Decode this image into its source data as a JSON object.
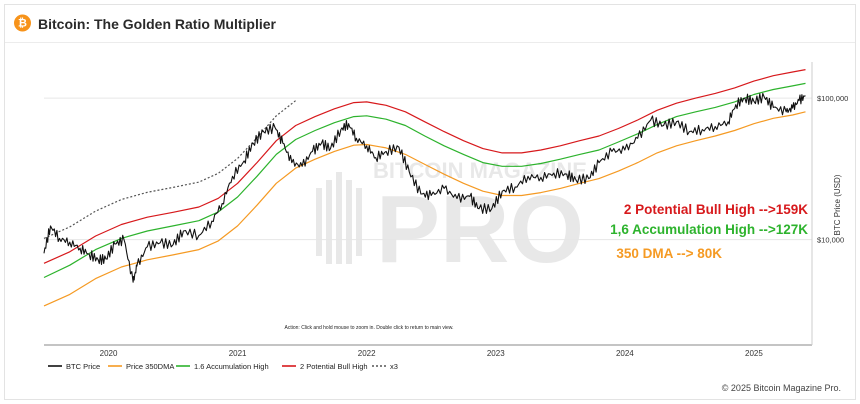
{
  "header": {
    "title": "Bitcoin: The Golden Ratio Multiplier",
    "logo_icon": "bitcoin-logo-icon",
    "logo_glyph": "₿"
  },
  "footer": {
    "copyright": "© 2025 Bitcoin Magazine Pro."
  },
  "watermark": {
    "top": "BITCOIN MAGAZINE",
    "main": "PRO"
  },
  "hint": "Action: Click and hold mouse to zoom in.  Double click to return to main view.",
  "colors": {
    "btc": "#111111",
    "dma350": "#f59a23",
    "accumulation": "#2db32d",
    "bull": "#d7191c",
    "x3": "#555555",
    "grid": "#e6e6e6"
  },
  "annotations": [
    {
      "text": "2 Potential Bull High -->159K",
      "color": "#d7191c"
    },
    {
      "text": "1,6 Accumulation High -->127K",
      "color": "#2db32d"
    },
    {
      "text": "350 DMA --> 80K",
      "color": "#f59a23"
    }
  ],
  "chart_data": {
    "type": "line",
    "title": "Bitcoin: The Golden Ratio Multiplier",
    "ylabel": "BTC Price (USD)",
    "yscale": "log",
    "ylim": [
      1800,
      180000
    ],
    "xlim": [
      2019.5,
      2025.45
    ],
    "x_ticks": [
      {
        "value": 2020,
        "label": "2020"
      },
      {
        "value": 2021,
        "label": "2021"
      },
      {
        "value": 2022,
        "label": "2022"
      },
      {
        "value": 2023,
        "label": "2023"
      },
      {
        "value": 2024,
        "label": "2024"
      },
      {
        "value": 2025,
        "label": "2025"
      }
    ],
    "y_ticks": [
      {
        "value": 10000,
        "label": "$10,000"
      },
      {
        "value": 100000,
        "label": "$100,000"
      }
    ],
    "grid": true,
    "legend_position": "bottom-left",
    "series": [
      {
        "name": "BTC Price",
        "key": "btc",
        "dash": "",
        "points": [
          [
            2019.5,
            8000
          ],
          [
            2019.55,
            12500
          ],
          [
            2019.62,
            10200
          ],
          [
            2019.7,
            9600
          ],
          [
            2019.78,
            8700
          ],
          [
            2019.85,
            7900
          ],
          [
            2019.92,
            7200
          ],
          [
            2019.98,
            7300
          ],
          [
            2020.05,
            9300
          ],
          [
            2020.12,
            10000
          ],
          [
            2020.19,
            5000
          ],
          [
            2020.22,
            6500
          ],
          [
            2020.3,
            8900
          ],
          [
            2020.4,
            9500
          ],
          [
            2020.5,
            9200
          ],
          [
            2020.58,
            11500
          ],
          [
            2020.7,
            10700
          ],
          [
            2020.8,
            13500
          ],
          [
            2020.88,
            18000
          ],
          [
            2020.96,
            28000
          ],
          [
            2021.05,
            36000
          ],
          [
            2021.12,
            48000
          ],
          [
            2021.2,
            58000
          ],
          [
            2021.29,
            62000
          ],
          [
            2021.35,
            48000
          ],
          [
            2021.42,
            35000
          ],
          [
            2021.5,
            33000
          ],
          [
            2021.58,
            42000
          ],
          [
            2021.65,
            48000
          ],
          [
            2021.72,
            44000
          ],
          [
            2021.8,
            60000
          ],
          [
            2021.86,
            66000
          ],
          [
            2021.92,
            52000
          ],
          [
            2022.0,
            46000
          ],
          [
            2022.07,
            38000
          ],
          [
            2022.15,
            42000
          ],
          [
            2022.25,
            45000
          ],
          [
            2022.33,
            30000
          ],
          [
            2022.42,
            21000
          ],
          [
            2022.5,
            20500
          ],
          [
            2022.6,
            23000
          ],
          [
            2022.7,
            19500
          ],
          [
            2022.8,
            20200
          ],
          [
            2022.87,
            16500
          ],
          [
            2022.97,
            16600
          ],
          [
            2023.05,
            22000
          ],
          [
            2023.15,
            23500
          ],
          [
            2023.25,
            28000
          ],
          [
            2023.35,
            27500
          ],
          [
            2023.45,
            29500
          ],
          [
            2023.55,
            29000
          ],
          [
            2023.62,
            26500
          ],
          [
            2023.72,
            27000
          ],
          [
            2023.8,
            35000
          ],
          [
            2023.9,
            42000
          ],
          [
            2024.0,
            43000
          ],
          [
            2024.1,
            52000
          ],
          [
            2024.2,
            70000
          ],
          [
            2024.3,
            64000
          ],
          [
            2024.4,
            68000
          ],
          [
            2024.5,
            58000
          ],
          [
            2024.6,
            60000
          ],
          [
            2024.7,
            63000
          ],
          [
            2024.8,
            68000
          ],
          [
            2024.86,
            90000
          ],
          [
            2024.93,
            100000
          ],
          [
            2025.0,
            95000
          ],
          [
            2025.08,
            102000
          ],
          [
            2025.15,
            86000
          ],
          [
            2025.25,
            80000
          ],
          [
            2025.3,
            85000
          ],
          [
            2025.35,
            96000
          ],
          [
            2025.4,
            104000
          ]
        ]
      },
      {
        "name": "Price 350DMA",
        "key": "dma350",
        "dash": "",
        "points": [
          [
            2019.5,
            3400
          ],
          [
            2019.7,
            4100
          ],
          [
            2019.9,
            5300
          ],
          [
            2020.1,
            6400
          ],
          [
            2020.3,
            7200
          ],
          [
            2020.5,
            7800
          ],
          [
            2020.7,
            8500
          ],
          [
            2020.85,
            9800
          ],
          [
            2021.0,
            12500
          ],
          [
            2021.15,
            17500
          ],
          [
            2021.3,
            25000
          ],
          [
            2021.45,
            32000
          ],
          [
            2021.6,
            37000
          ],
          [
            2021.75,
            42000
          ],
          [
            2021.9,
            46500
          ],
          [
            2022.0,
            47000
          ],
          [
            2022.15,
            44500
          ],
          [
            2022.3,
            40000
          ],
          [
            2022.45,
            34000
          ],
          [
            2022.6,
            29000
          ],
          [
            2022.75,
            25000
          ],
          [
            2022.9,
            22000
          ],
          [
            2023.05,
            20500
          ],
          [
            2023.2,
            20500
          ],
          [
            2023.35,
            21500
          ],
          [
            2023.5,
            23000
          ],
          [
            2023.65,
            25000
          ],
          [
            2023.8,
            27000
          ],
          [
            2023.95,
            30500
          ],
          [
            2024.1,
            35000
          ],
          [
            2024.25,
            41000
          ],
          [
            2024.4,
            46000
          ],
          [
            2024.55,
            50000
          ],
          [
            2024.7,
            54000
          ],
          [
            2024.85,
            59000
          ],
          [
            2025.0,
            66000
          ],
          [
            2025.15,
            72000
          ],
          [
            2025.3,
            76000
          ],
          [
            2025.4,
            80000
          ]
        ]
      },
      {
        "name": "1.6 Accumulation High",
        "key": "accumulation",
        "dash": "",
        "points": [
          [
            2019.5,
            5400
          ],
          [
            2019.7,
            6600
          ],
          [
            2019.9,
            8500
          ],
          [
            2020.1,
            10200
          ],
          [
            2020.3,
            11500
          ],
          [
            2020.5,
            12500
          ],
          [
            2020.7,
            13600
          ],
          [
            2020.85,
            15700
          ],
          [
            2021.0,
            20000
          ],
          [
            2021.15,
            28000
          ],
          [
            2021.3,
            40000
          ],
          [
            2021.45,
            51000
          ],
          [
            2021.6,
            59000
          ],
          [
            2021.75,
            67000
          ],
          [
            2021.9,
            74000
          ],
          [
            2022.0,
            75000
          ],
          [
            2022.15,
            71000
          ],
          [
            2022.3,
            64000
          ],
          [
            2022.45,
            54000
          ],
          [
            2022.6,
            46000
          ],
          [
            2022.75,
            40000
          ],
          [
            2022.9,
            35000
          ],
          [
            2023.05,
            33000
          ],
          [
            2023.2,
            33000
          ],
          [
            2023.35,
            34500
          ],
          [
            2023.5,
            37000
          ],
          [
            2023.65,
            40000
          ],
          [
            2023.8,
            43000
          ],
          [
            2023.95,
            49000
          ],
          [
            2024.1,
            56000
          ],
          [
            2024.25,
            65000
          ],
          [
            2024.4,
            74000
          ],
          [
            2024.55,
            80000
          ],
          [
            2024.7,
            86000
          ],
          [
            2024.85,
            94000
          ],
          [
            2025.0,
            106000
          ],
          [
            2025.15,
            115000
          ],
          [
            2025.3,
            122000
          ],
          [
            2025.4,
            127000
          ]
        ]
      },
      {
        "name": "2 Potential Bull High",
        "key": "bull",
        "dash": "",
        "points": [
          [
            2019.5,
            6800
          ],
          [
            2019.7,
            8200
          ],
          [
            2019.9,
            10600
          ],
          [
            2020.1,
            12800
          ],
          [
            2020.3,
            14400
          ],
          [
            2020.5,
            15600
          ],
          [
            2020.7,
            17000
          ],
          [
            2020.85,
            19600
          ],
          [
            2021.0,
            25000
          ],
          [
            2021.15,
            35000
          ],
          [
            2021.3,
            50000
          ],
          [
            2021.45,
            64000
          ],
          [
            2021.6,
            74000
          ],
          [
            2021.75,
            84000
          ],
          [
            2021.9,
            93000
          ],
          [
            2022.0,
            94000
          ],
          [
            2022.15,
            89000
          ],
          [
            2022.3,
            80000
          ],
          [
            2022.45,
            68000
          ],
          [
            2022.6,
            58000
          ],
          [
            2022.75,
            50000
          ],
          [
            2022.9,
            44000
          ],
          [
            2023.05,
            41000
          ],
          [
            2023.2,
            41000
          ],
          [
            2023.35,
            43000
          ],
          [
            2023.5,
            46000
          ],
          [
            2023.65,
            50000
          ],
          [
            2023.8,
            54000
          ],
          [
            2023.95,
            61000
          ],
          [
            2024.1,
            70000
          ],
          [
            2024.25,
            82000
          ],
          [
            2024.4,
            92000
          ],
          [
            2024.55,
            100000
          ],
          [
            2024.7,
            108000
          ],
          [
            2024.85,
            118000
          ],
          [
            2025.0,
            132000
          ],
          [
            2025.15,
            144000
          ],
          [
            2025.3,
            153000
          ],
          [
            2025.4,
            159000
          ]
        ]
      },
      {
        "name": "x3",
        "key": "x3",
        "dash": "2,2",
        "points": [
          [
            2019.5,
            10200
          ],
          [
            2019.7,
            12300
          ],
          [
            2019.9,
            15900
          ],
          [
            2020.1,
            19200
          ],
          [
            2020.3,
            21600
          ],
          [
            2020.5,
            23400
          ],
          [
            2020.7,
            25500
          ],
          [
            2020.85,
            29400
          ],
          [
            2021.0,
            37500
          ],
          [
            2021.15,
            52500
          ],
          [
            2021.3,
            75000
          ],
          [
            2021.45,
            96000
          ]
        ]
      }
    ]
  }
}
